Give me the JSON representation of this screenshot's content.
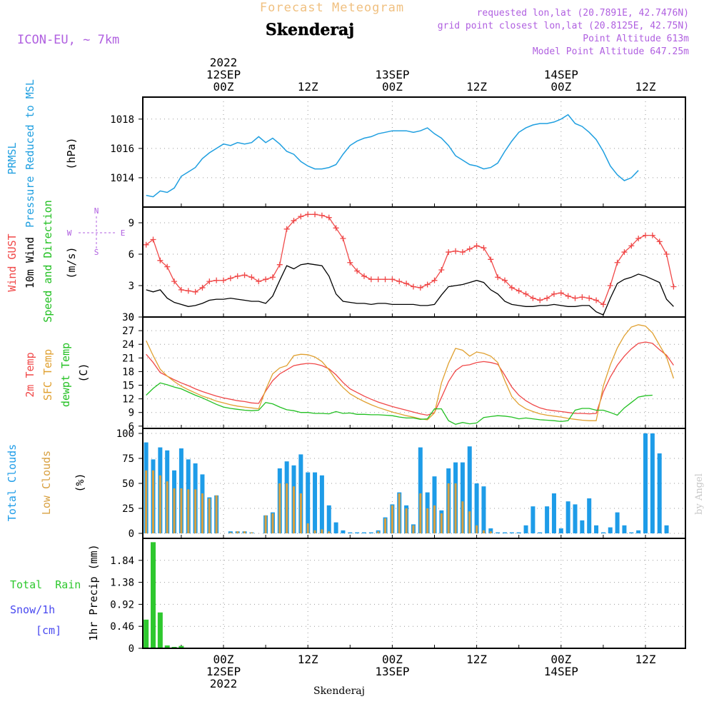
{
  "header": {
    "app_title": "Forecast Meteogram",
    "location": "Skenderaj",
    "model": "ICON-EU, ~ 7km",
    "requested": "requested lon,lat (20.7891E, 42.7476N)",
    "grid_point": "grid point closest lon,lat (20.8125E, 42.75N)",
    "point_altitude": "Point Altitude 613m",
    "model_altitude": "Model Point Altitude 647.25m"
  },
  "footer": {
    "location": "Skenderaj",
    "credit": "by Angel"
  },
  "time_axis": {
    "top_labels": [
      {
        "h": 0,
        "lines": [
          "2022",
          "12SEP",
          "00Z"
        ]
      },
      {
        "h": 12,
        "lines": [
          "12Z"
        ]
      },
      {
        "h": 24,
        "lines": [
          "13SEP",
          "00Z"
        ]
      },
      {
        "h": 36,
        "lines": [
          "12Z"
        ]
      },
      {
        "h": 48,
        "lines": [
          "14SEP",
          "00Z"
        ]
      },
      {
        "h": 60,
        "lines": [
          "12Z"
        ]
      }
    ],
    "bottom_labels": [
      {
        "h": 0,
        "lines": [
          "00Z",
          "12SEP",
          "2022"
        ]
      },
      {
        "h": 12,
        "lines": [
          "12Z"
        ]
      },
      {
        "h": 24,
        "lines": [
          "00Z",
          "13SEP"
        ]
      },
      {
        "h": 36,
        "lines": [
          "12Z"
        ]
      },
      {
        "h": 48,
        "lines": [
          "00Z",
          "14SEP"
        ]
      },
      {
        "h": 60,
        "lines": [
          "12Z"
        ]
      }
    ]
  },
  "colors": {
    "pressure": "#1f9fe0",
    "gust": "#f04848",
    "wind10m": "#000000",
    "temp2m": "#f04848",
    "sfc": "#e0a030",
    "dewpt": "#22c022",
    "total_clouds": "#1e9ce8",
    "low_clouds": "#d8a040",
    "rain": "#2ec82e",
    "snow": "#4848f0",
    "header": "#b060e0",
    "title": "#f0c080"
  },
  "chart_data": [
    {
      "type": "line",
      "panel": "pressure",
      "labels": {
        "rot1": "PRMSL",
        "rot2": "Pressure Reduced to MSL",
        "unit": "(hPa)"
      },
      "ylim": [
        1012,
        1019.5
      ],
      "yticks": [
        "1014",
        "1016",
        "1018"
      ],
      "ytick_values": [
        1014,
        1016,
        1018
      ],
      "x_start": -11,
      "x_step": 1,
      "values": [
        1012.8,
        1012.7,
        1013.1,
        1013.0,
        1013.3,
        1014.1,
        1014.4,
        1014.7,
        1015.3,
        1015.7,
        1016.0,
        1016.3,
        1016.2,
        1016.4,
        1016.3,
        1016.4,
        1016.8,
        1016.4,
        1016.7,
        1016.3,
        1015.8,
        1015.6,
        1015.1,
        1014.8,
        1014.6,
        1014.6,
        1014.7,
        1014.9,
        1015.6,
        1016.2,
        1016.5,
        1016.7,
        1016.8,
        1017.0,
        1017.1,
        1017.2,
        1017.2,
        1017.2,
        1017.1,
        1017.2,
        1017.4,
        1017.0,
        1016.7,
        1016.2,
        1015.5,
        1015.2,
        1014.9,
        1014.8,
        1014.6,
        1014.7,
        1015.0,
        1015.8,
        1016.5,
        1017.1,
        1017.4,
        1017.6,
        1017.7,
        1017.7,
        1017.8,
        1018.0,
        1018.3,
        1017.7,
        1017.5,
        1017.1,
        1016.6,
        1015.8,
        1014.8,
        1014.2,
        1013.8,
        1014.0,
        1014.5
      ]
    },
    {
      "type": "line",
      "panel": "wind",
      "labels": {
        "rot1": "Wind GUST",
        "rot2": "10m Wind",
        "rot3": "Speed and Direction",
        "unit": "(m/s)",
        "compass_n": "N",
        "compass_w": "W",
        "compass_e": "E",
        "compass_s": "S"
      },
      "ylim": [
        0,
        10.5
      ],
      "yticks": [
        "0",
        "3",
        "6",
        "9"
      ],
      "ytick_values": [
        0,
        3,
        6,
        9
      ],
      "x_start": -11,
      "x_step": 1,
      "series": [
        {
          "name": "Wind GUST",
          "values": [
            6.9,
            7.4,
            5.4,
            4.8,
            3.4,
            2.6,
            2.5,
            2.4,
            2.8,
            3.4,
            3.5,
            3.5,
            3.7,
            3.9,
            4.0,
            3.8,
            3.4,
            3.6,
            3.8,
            5.0,
            8.4,
            9.2,
            9.6,
            9.8,
            9.8,
            9.7,
            9.5,
            8.5,
            7.5,
            5.2,
            4.4,
            3.9,
            3.6,
            3.6,
            3.6,
            3.6,
            3.4,
            3.2,
            2.9,
            2.8,
            3.1,
            3.5,
            4.5,
            6.2,
            6.3,
            6.2,
            6.5,
            6.8,
            6.6,
            5.5,
            3.8,
            3.5,
            2.8,
            2.5,
            2.2,
            1.8,
            1.6,
            1.8,
            2.2,
            2.3,
            2.0,
            1.8,
            1.9,
            1.8,
            1.6,
            1.2,
            3.0,
            5.2,
            6.2,
            6.8,
            7.5,
            7.8,
            7.8,
            7.2,
            6.0,
            2.9
          ]
        },
        {
          "name": "10m Wind",
          "values": [
            2.6,
            2.4,
            2.6,
            1.8,
            1.4,
            1.2,
            1.0,
            1.1,
            1.3,
            1.6,
            1.7,
            1.7,
            1.8,
            1.7,
            1.6,
            1.5,
            1.5,
            1.3,
            2.0,
            3.5,
            4.9,
            4.6,
            5.0,
            5.1,
            5.0,
            4.9,
            3.9,
            2.2,
            1.5,
            1.4,
            1.3,
            1.3,
            1.2,
            1.3,
            1.3,
            1.2,
            1.2,
            1.2,
            1.2,
            1.1,
            1.1,
            1.2,
            2.1,
            2.9,
            3.0,
            3.1,
            3.3,
            3.5,
            3.3,
            2.6,
            2.2,
            1.5,
            1.2,
            1.1,
            1.0,
            1.0,
            1.1,
            1.1,
            1.2,
            1.1,
            1.0,
            1.0,
            1.1,
            1.1,
            0.5,
            0.2,
            1.8,
            3.2,
            3.6,
            3.8,
            4.1,
            3.9,
            3.6,
            3.3,
            1.7,
            1.0
          ]
        }
      ]
    },
    {
      "type": "line",
      "panel": "temperature",
      "labels": {
        "rot1": "2m Temp",
        "rot2": "SFC Temp",
        "rot3": "dewpt Temp",
        "unit": "(C)"
      },
      "ylim": [
        5.5,
        30
      ],
      "yticks": [
        "6",
        "9",
        "12",
        "15",
        "18",
        "21",
        "24",
        "27",
        "30"
      ],
      "ytick_values": [
        6,
        9,
        12,
        15,
        18,
        21,
        24,
        27,
        30
      ],
      "x_start": -11,
      "x_step": 1,
      "series": [
        {
          "name": "2m Temp",
          "values": [
            21.8,
            20.0,
            17.8,
            17.0,
            16.2,
            15.5,
            14.9,
            14.2,
            13.6,
            13.1,
            12.6,
            12.2,
            11.9,
            11.6,
            11.4,
            11.1,
            11.0,
            13.7,
            16.0,
            17.5,
            18.4,
            19.3,
            19.6,
            19.8,
            19.7,
            19.3,
            18.6,
            17.3,
            15.6,
            14.2,
            13.4,
            12.6,
            11.9,
            11.3,
            10.8,
            10.3,
            9.9,
            9.5,
            9.1,
            8.7,
            8.4,
            9.0,
            12.3,
            15.8,
            18.2,
            19.3,
            19.5,
            20.0,
            20.2,
            20.0,
            19.6,
            17.2,
            14.6,
            12.8,
            11.6,
            10.7,
            10.0,
            9.6,
            9.4,
            9.2,
            9.0,
            8.8,
            8.8,
            8.7,
            8.8,
            13.5,
            16.8,
            19.4,
            21.4,
            23.0,
            24.2,
            24.5,
            24.2,
            22.8,
            21.6,
            19.4
          ]
        },
        {
          "name": "SFC Temp",
          "values": [
            24.8,
            21.5,
            18.5,
            17.0,
            15.8,
            14.8,
            14.0,
            13.3,
            12.6,
            12.1,
            11.5,
            11.1,
            10.7,
            10.4,
            10.2,
            10.0,
            9.8,
            14.0,
            17.5,
            18.8,
            19.3,
            21.5,
            21.8,
            21.7,
            21.2,
            20.2,
            18.4,
            16.2,
            14.5,
            13.1,
            12.2,
            11.4,
            10.7,
            10.1,
            9.6,
            9.1,
            8.7,
            8.3,
            8.0,
            7.6,
            7.4,
            8.9,
            15.5,
            19.8,
            23.1,
            22.7,
            21.4,
            22.3,
            22.0,
            21.4,
            20.0,
            16.0,
            12.5,
            10.8,
            9.8,
            9.2,
            8.7,
            8.4,
            8.2,
            8.0,
            7.7,
            7.5,
            7.3,
            7.2,
            7.2,
            14.8,
            19.5,
            23.2,
            25.9,
            27.8,
            28.3,
            28.0,
            26.5,
            23.8,
            21.2,
            16.5
          ]
        },
        {
          "name": "dewpt Temp",
          "values": [
            12.8,
            14.3,
            15.5,
            15.1,
            14.6,
            14.2,
            13.5,
            12.8,
            12.2,
            11.5,
            10.8,
            10.2,
            9.9,
            9.7,
            9.5,
            9.4,
            9.5,
            11.2,
            10.9,
            10.2,
            9.6,
            9.4,
            9.0,
            9.0,
            8.8,
            8.8,
            8.7,
            9.2,
            8.8,
            8.9,
            8.6,
            8.6,
            8.5,
            8.5,
            8.4,
            8.3,
            8.0,
            7.8,
            7.8,
            7.5,
            7.6,
            9.8,
            9.8,
            7.2,
            6.4,
            6.8,
            6.5,
            6.7,
            7.9,
            8.1,
            8.3,
            8.2,
            8.0,
            7.6,
            7.8,
            7.6,
            7.4,
            7.3,
            7.2,
            7.0,
            7.2,
            9.5,
            9.9,
            9.9,
            9.5,
            9.5,
            9.0,
            8.4,
            10.0,
            11.2,
            12.4,
            12.7,
            12.8
          ]
        }
      ]
    },
    {
      "type": "bar",
      "panel": "clouds",
      "labels": {
        "rot1": "Total Clouds",
        "rot2": "Low Clouds",
        "unit": "(%)"
      },
      "ylim": [
        -5,
        105
      ],
      "yticks": [
        "0",
        "25",
        "50",
        "75",
        "100"
      ],
      "ytick_values": [
        0,
        25,
        50,
        75,
        100
      ],
      "x_start": -11,
      "x_step": 1,
      "series": [
        {
          "name": "Total Clouds",
          "values": [
            91,
            74,
            86,
            83,
            63,
            85,
            74,
            70,
            59,
            36,
            38,
            0,
            2,
            2,
            2,
            1,
            0,
            18,
            21,
            65,
            72,
            68,
            79,
            61,
            61,
            58,
            28,
            11,
            3,
            1,
            1,
            1,
            1,
            3,
            16,
            29,
            41,
            28,
            9,
            86,
            41,
            57,
            23,
            65,
            71,
            71,
            87,
            50,
            47,
            5,
            1,
            1,
            1,
            1,
            8,
            27,
            1,
            27,
            40,
            5,
            32,
            29,
            13,
            35,
            8,
            1,
            6,
            21,
            8,
            1,
            3,
            100,
            100,
            80,
            8
          ]
        },
        {
          "name": "Low Clouds",
          "values": [
            63,
            63,
            58,
            52,
            45,
            45,
            44,
            44,
            40,
            35,
            38,
            0,
            1,
            2,
            2,
            1,
            0,
            18,
            20,
            50,
            50,
            47,
            40,
            10,
            3,
            4,
            2,
            0,
            0,
            0,
            0,
            0,
            0,
            2,
            15,
            28,
            40,
            25,
            8,
            40,
            25,
            28,
            20,
            50,
            50,
            32,
            22,
            8,
            3,
            2,
            0,
            0,
            0,
            0,
            0,
            0,
            0,
            0,
            0,
            0,
            0,
            0,
            0,
            0,
            0,
            0,
            0,
            0,
            0,
            0,
            0,
            0,
            0,
            0,
            0
          ]
        }
      ]
    },
    {
      "type": "bar",
      "panel": "precip",
      "labels": {
        "rot1": "1hr Precip (mm)",
        "total_rain": "Total  Rain",
        "snow": "Snow/1h",
        "snow_unit": "[cm]"
      },
      "ylim": [
        0,
        2.3
      ],
      "yticks": [
        "0",
        "0.46",
        "0.92",
        "1.38",
        "1.84"
      ],
      "ytick_values": [
        0,
        0.46,
        0.92,
        1.38,
        1.84
      ],
      "x_start": -11,
      "x_step": 1,
      "values": [
        0.6,
        2.22,
        0.75,
        0.06,
        0.03,
        0.05
      ]
    }
  ]
}
